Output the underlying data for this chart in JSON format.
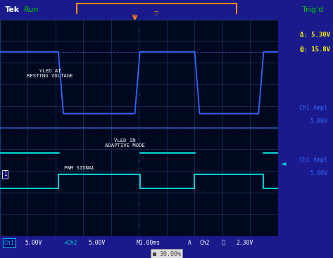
{
  "fig_width": 4.73,
  "fig_height": 3.67,
  "dpi": 100,
  "outer_bg": "#1a1a8c",
  "screen_bg": "#000820",
  "grid_col": "#1a3a6a",
  "divider_col": "#2255aa",
  "ch1_color": "#3366ff",
  "ch2_color": "#00cccc",
  "ch1_dash_color": "#3366ff",
  "trigger_color": "#ff8800",
  "header_bg": "#000060",
  "status_bg": "#000060",
  "white": "#ffffff",
  "yellow": "#ffff00",
  "green": "#00cc00",
  "label_vled_at": "VLED AT\nRESTING VOLTAGE",
  "label_vled_in": "VLED IN\nADAPTIVE MODE",
  "label_pwm": "PWM SIGNAL",
  "delta_text": "Δ: 5.30V",
  "at_text": "@: 15.8V",
  "ch1_ampl1": "Ch1 Ampl",
  "ch1_ampl2": "5.00V",
  "trig_text": "Trig'd",
  "tek_text": "Tek",
  "run_text": "Run",
  "status_ch1": "Ch1",
  "status_ch1v": "5.00V",
  "status_ch2": "»Ch2",
  "status_ch2v": "5.00V",
  "status_m": "M1.00ms",
  "status_a": "A",
  "status_ch2b": "Ch2",
  "status_trig": "∯",
  "status_trigv": "2.30V",
  "bottom_pct": "30.00%"
}
